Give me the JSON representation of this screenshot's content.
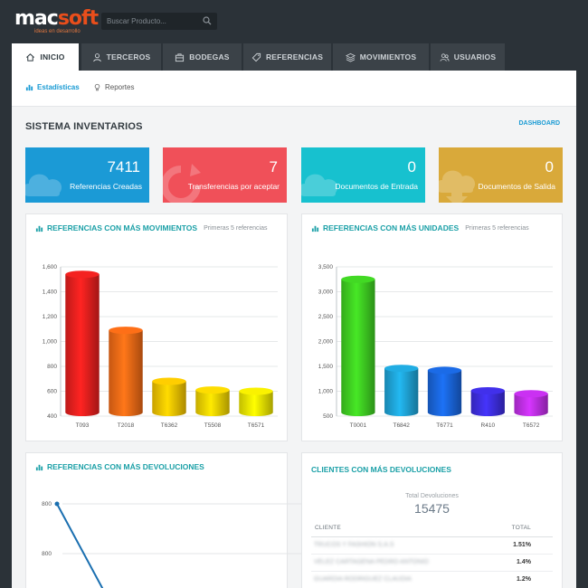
{
  "brand": {
    "mac": "mac",
    "soft": "soft",
    "tagline": "ideas en desarrollo"
  },
  "search": {
    "placeholder": "Buscar Producto..."
  },
  "nav": {
    "tabs": [
      {
        "label": "INICIO",
        "icon": "home-icon"
      },
      {
        "label": "TERCEROS",
        "icon": "user-icon"
      },
      {
        "label": "BODEGAS",
        "icon": "briefcase-icon"
      },
      {
        "label": "REFERENCIAS",
        "icon": "tag-icon"
      },
      {
        "label": "MOVIMIENTOS",
        "icon": "layers-icon"
      },
      {
        "label": "USUARIOS",
        "icon": "users-icon"
      }
    ]
  },
  "subnav": {
    "stats": "Estadísticas",
    "reports": "Reportes"
  },
  "page": {
    "title": "SISTEMA INVENTARIOS",
    "dashboard_link": "DASHBOARD"
  },
  "stats": [
    {
      "value": "7411",
      "label": "Referencias Creadas",
      "color": "#1b9ad6"
    },
    {
      "value": "7",
      "label": "Transferencias por aceptar",
      "color": "#f05059"
    },
    {
      "value": "0",
      "label": "Documentos de Entrada",
      "color": "#17c1cf"
    },
    {
      "value": "0",
      "label": "Documentos de Salida",
      "color": "#d9a93a"
    }
  ],
  "panels": {
    "movimientos": {
      "title": "REFERENCIAS CON MÁS MOVIMIENTOS",
      "subtitle": "Primeras 5 referencias"
    },
    "unidades": {
      "title": "REFERENCIAS CON MÁS UNIDADES",
      "subtitle": "Primeras 5 referencias"
    },
    "devoluciones": {
      "title": "REFERENCIAS CON MÁS DEVOLUCIONES"
    },
    "clientes": {
      "title": "CLIENTES CON MÁS DEVOLUCIONES",
      "total_label": "Total Devoluciones",
      "total_value": "15475",
      "col_client": "CLIENTE",
      "col_total": "TOTAL",
      "rows": [
        {
          "name": "TRUCOS Y FASHION S.A.S",
          "total": "1.51%"
        },
        {
          "name": "VELEZ CARTAGENA PEDRO ANTONIO",
          "total": "1.4%"
        },
        {
          "name": "GUARDIA RODRIGUEZ CLAUDIA",
          "total": "1.2%"
        }
      ]
    }
  },
  "chart_data": [
    {
      "type": "bar",
      "title": "REFERENCIAS CON MÁS MOVIMIENTOS",
      "categories": [
        "T093",
        "T2018",
        "T6362",
        "T5508",
        "T6571"
      ],
      "values": [
        1540,
        1090,
        680,
        610,
        600
      ],
      "colors": [
        "#e8201e",
        "#f26a16",
        "#f5c400",
        "#f2d200",
        "#eee600"
      ],
      "ylim": [
        400,
        1600
      ],
      "yticks": [
        400,
        600,
        800,
        1000,
        1200,
        1400,
        1600
      ],
      "grid": true
    },
    {
      "type": "bar",
      "title": "REFERENCIAS CON MÁS UNIDADES",
      "categories": [
        "T0001",
        "T6842",
        "T6771",
        "R410",
        "T6572"
      ],
      "values": [
        3250,
        1460,
        1420,
        1010,
        950
      ],
      "colors": [
        "#3fcf22",
        "#1fa5d8",
        "#1a66dc",
        "#3e2ee0",
        "#c02fe6"
      ],
      "ylim": [
        500,
        3500
      ],
      "yticks": [
        500,
        1000,
        1500,
        2000,
        2500,
        3000,
        3500
      ],
      "grid": true
    },
    {
      "type": "line",
      "title": "REFERENCIAS CON MÁS DEVOLUCIONES",
      "ytick_labels": [
        "800",
        "800"
      ],
      "x": [
        0,
        1
      ],
      "y": [
        800,
        760
      ],
      "grid": true
    }
  ]
}
